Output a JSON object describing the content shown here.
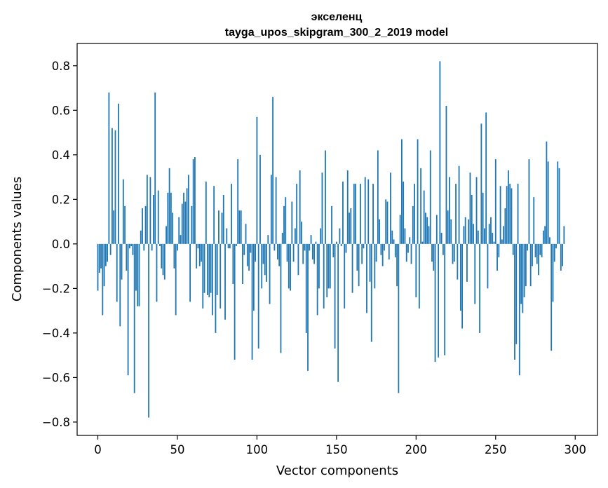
{
  "chart_data": {
    "type": "bar",
    "title": "экселенц",
    "subtitle": "tayga_upos_skipgram_300_2_2019 model",
    "xlabel": "Vector components",
    "ylabel": "Components values",
    "xlim": [
      -13,
      314
    ],
    "ylim": [
      -0.86,
      0.9
    ],
    "xticks": [
      0,
      50,
      100,
      150,
      200,
      250,
      300
    ],
    "yticks": [
      -0.8,
      -0.6,
      -0.4,
      -0.2,
      0.0,
      0.2,
      0.4,
      0.6,
      0.8
    ],
    "grid": false,
    "legend": "none",
    "bar_color": "#1f77b4",
    "series": [
      {
        "values": [
          -0.21,
          -0.13,
          -0.11,
          -0.32,
          -0.19,
          -0.1,
          -0.08,
          0.68,
          -0.05,
          0.52,
          0.15,
          0.51,
          -0.26,
          0.63,
          -0.37,
          -0.16,
          0.29,
          0.17,
          -0.12,
          -0.59,
          -0.02,
          -0.01,
          -0.05,
          -0.67,
          -0.21,
          -0.28,
          -0.28,
          0.06,
          0.16,
          -0.03,
          0.17,
          0.31,
          -0.78,
          0.3,
          -0.03,
          0.22,
          0.68,
          -0.26,
          0.24,
          -0.01,
          -0.11,
          -0.14,
          -0.16,
          0.08,
          0.23,
          0.34,
          0.23,
          0.14,
          -0.11,
          -0.32,
          -0.03,
          0.12,
          0.04,
          0.18,
          0.23,
          0.19,
          0.25,
          0.31,
          -0.26,
          0.17,
          0.38,
          0.39,
          -0.11,
          -0.02,
          -0.1,
          -0.08,
          -0.29,
          -0.22,
          0.28,
          -0.23,
          -0.24,
          -0.22,
          -0.32,
          0.26,
          -0.4,
          -0.23,
          0.15,
          -0.29,
          0.14,
          0.22,
          -0.34,
          0.07,
          -0.02,
          -0.02,
          0.27,
          -0.18,
          -0.52,
          -0.01,
          0.38,
          0.15,
          0.15,
          -0.18,
          -0.05,
          0.09,
          -0.1,
          -0.12,
          -0.04,
          -0.52,
          -0.3,
          -0.08,
          0.57,
          -0.47,
          0.4,
          -0.2,
          -0.09,
          -0.14,
          -0.17,
          0.04,
          -0.27,
          0.31,
          0.66,
          -0.03,
          0.3,
          -0.07,
          -0.1,
          -0.49,
          0.05,
          0.17,
          0.21,
          -0.08,
          -0.2,
          -0.21,
          0.19,
          -0.08,
          0.07,
          0.27,
          -0.14,
          0.33,
          0.1,
          -0.09,
          -0.03,
          -0.4,
          -0.57,
          -0.03,
          0.04,
          -0.07,
          -0.09,
          0.01,
          -0.32,
          -0.2,
          0.07,
          0.32,
          -0.29,
          0.42,
          -0.24,
          -0.2,
          -0.2,
          0.17,
          -0.06,
          -0.47,
          0.01,
          -0.62,
          0.07,
          -0.01,
          0.28,
          -0.29,
          -0.04,
          0.33,
          0.14,
          0.16,
          -0.22,
          0.27,
          0.27,
          -0.12,
          -0.19,
          0.27,
          -0.09,
          -0.02,
          0.3,
          -0.31,
          0.29,
          -0.17,
          -0.44,
          0.27,
          -0.2,
          -0.08,
          0.42,
          0.11,
          -0.05,
          -0.1,
          -0.03,
          0.2,
          0.19,
          -0.07,
          0.32,
          0.06,
          0.02,
          -0.06,
          -0.19,
          -0.67,
          0.13,
          0.47,
          0.28,
          0.07,
          -0.08,
          -0.04,
          0.03,
          -0.09,
          0.17,
          0.27,
          -0.24,
          0.47,
          -0.29,
          0.34,
          0.01,
          0.24,
          0.14,
          0.12,
          0.08,
          0.42,
          -0.08,
          -0.12,
          -0.53,
          0.13,
          -0.51,
          0.82,
          0.05,
          -0.05,
          -0.5,
          0.62,
          0.15,
          0.3,
          0.11,
          -0.09,
          -0.08,
          0.27,
          -0.16,
          0.35,
          -0.3,
          -0.38,
          0.08,
          0.12,
          -0.17,
          0.11,
          0.32,
          0.22,
          0.09,
          -0.27,
          0.3,
          0.06,
          -0.4,
          0.54,
          0.23,
          0.07,
          0.59,
          -0.2,
          0.09,
          0.12,
          0.05,
          0.01,
          0.38,
          -0.12,
          -0.06,
          0.26,
          0.02,
          0.08,
          0.16,
          0.26,
          0.33,
          0.27,
          0.25,
          -0.05,
          -0.52,
          -0.45,
          0.27,
          -0.59,
          -0.27,
          -0.31,
          -0.24,
          -0.19,
          -0.03,
          0.38,
          -0.19,
          -0.1,
          0.21,
          -0.06,
          -0.09,
          -0.14,
          -0.05,
          -0.06,
          0.06,
          0.08,
          0.46,
          0.37,
          0.03,
          -0.48,
          -0.26,
          -0.08,
          -0.02,
          0.37,
          0.34,
          -0.12,
          -0.1,
          0.08
        ]
      }
    ]
  }
}
